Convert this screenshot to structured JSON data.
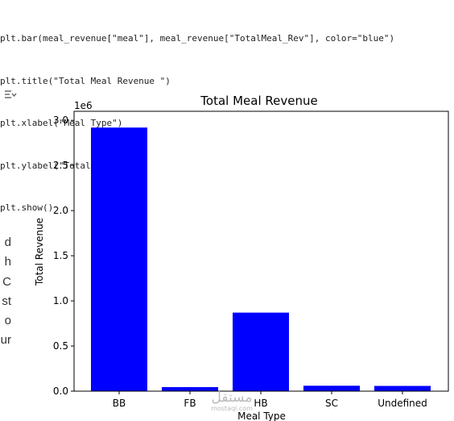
{
  "code": {
    "lines": [
      "plt.bar(meal_revenue[\"meal\"], meal_revenue[\"TotalMeal_Rev\"], color=\"blue\")",
      "plt.title(\"Total Meal Revenue \")",
      "plt.xlabel(\"Meal Type\")",
      "plt.ylabel(\"Total Revenue\")",
      "plt.show()"
    ]
  },
  "output_toggle_icon": "output-toggle-icon",
  "sidebar_fragments": [
    "d",
    "h",
    "C",
    "st",
    "o",
    "ur"
  ],
  "watermark": {
    "arabic": "مستقل",
    "site": "mostaql.com"
  },
  "chart_data": {
    "type": "bar",
    "title": "Total Meal Revenue",
    "xlabel": "Meal Type",
    "ylabel": "Total Revenue",
    "offset_label": "1e6",
    "categories": [
      "BB",
      "FB",
      "HB",
      "SC",
      "Undefined"
    ],
    "values": [
      2920000,
      45000,
      870000,
      60000,
      58000
    ],
    "ylim": [
      0,
      3100000
    ],
    "yticks": [
      0,
      500000,
      1000000,
      1500000,
      2000000,
      2500000,
      3000000
    ],
    "ytick_labels": [
      "0.0",
      "0.5",
      "1.0",
      "1.5",
      "2.0",
      "2.5",
      "3.0"
    ],
    "bar_color": "#0000ff",
    "grid": false
  }
}
